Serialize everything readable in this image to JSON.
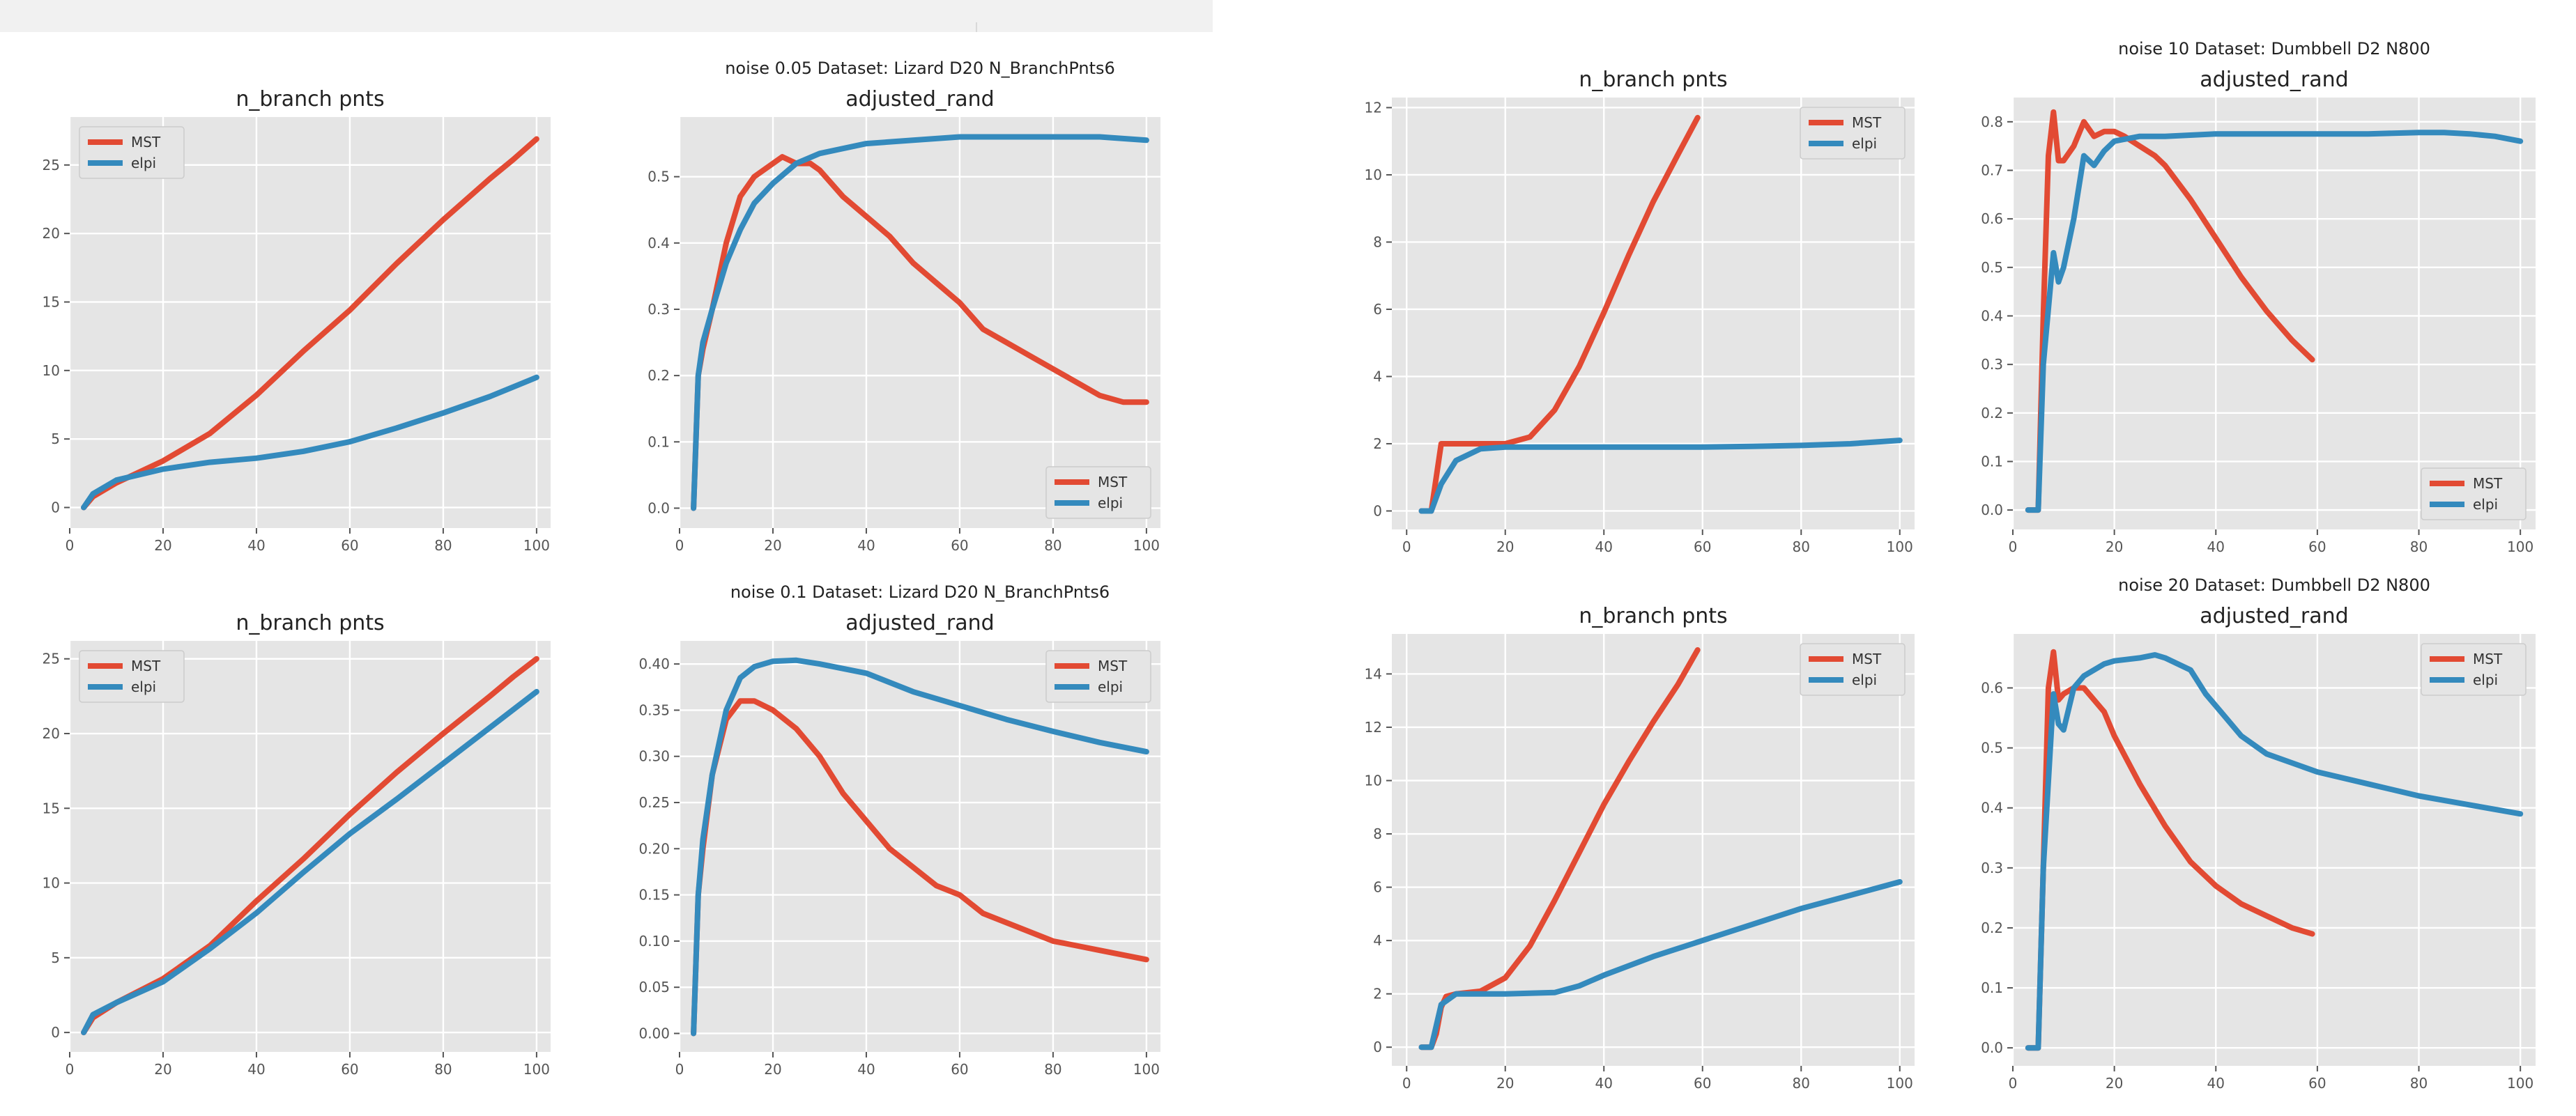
{
  "colors": {
    "MST": "#e24a33",
    "elpi": "#348abd",
    "panel": "#e5e5e5",
    "grid": "#ffffff"
  },
  "chart_data": [
    {
      "type": "line",
      "title": "n_branch pnts",
      "suptitle_line1": "",
      "legend": [
        "MST",
        "elpi"
      ],
      "legend_position": "upper-left",
      "xlim": [
        0,
        103
      ],
      "ylim": [
        -1.5,
        28.5
      ],
      "xticks": [
        0,
        20,
        40,
        60,
        80,
        100
      ],
      "yticks": [
        0,
        5,
        10,
        15,
        20,
        25
      ],
      "series": [
        {
          "name": "MST",
          "x": [
            3,
            5,
            10,
            20,
            30,
            40,
            50,
            60,
            70,
            80,
            90,
            95,
            100
          ],
          "values": [
            0,
            0.8,
            1.8,
            3.4,
            5.4,
            8.2,
            11.4,
            14.4,
            17.8,
            21.0,
            24.0,
            25.4,
            26.9
          ]
        },
        {
          "name": "elpi",
          "x": [
            3,
            5,
            10,
            20,
            30,
            40,
            50,
            60,
            70,
            80,
            90,
            100
          ],
          "values": [
            0,
            1.0,
            2.0,
            2.8,
            3.3,
            3.6,
            4.1,
            4.8,
            5.8,
            6.9,
            8.1,
            9.5
          ]
        }
      ]
    },
    {
      "type": "line",
      "title": "adjusted_rand",
      "suptitle_line1": "noise 0.05   Dataset: Lizard D20 N_BranchPnts6",
      "legend": [
        "MST",
        "elpi"
      ],
      "legend_position": "lower-right",
      "xlim": [
        0,
        103
      ],
      "ylim": [
        -0.03,
        0.59
      ],
      "xticks": [
        0,
        20,
        40,
        60,
        80,
        100
      ],
      "yticks": [
        0.0,
        0.1,
        0.2,
        0.3,
        0.4,
        0.5
      ],
      "series": [
        {
          "name": "MST",
          "x": [
            3,
            4,
            5,
            7,
            10,
            13,
            16,
            20,
            22,
            25,
            28,
            30,
            35,
            40,
            45,
            50,
            55,
            60,
            65,
            70,
            75,
            80,
            85,
            90,
            95,
            100
          ],
          "values": [
            0,
            0.2,
            0.24,
            0.3,
            0.4,
            0.47,
            0.5,
            0.52,
            0.53,
            0.52,
            0.52,
            0.51,
            0.47,
            0.44,
            0.41,
            0.37,
            0.34,
            0.31,
            0.27,
            0.25,
            0.23,
            0.21,
            0.19,
            0.17,
            0.16,
            0.16
          ]
        },
        {
          "name": "elpi",
          "x": [
            3,
            4,
            5,
            7,
            10,
            13,
            16,
            20,
            25,
            30,
            40,
            50,
            60,
            70,
            80,
            90,
            100
          ],
          "values": [
            0,
            0.2,
            0.25,
            0.3,
            0.37,
            0.42,
            0.46,
            0.49,
            0.52,
            0.535,
            0.55,
            0.555,
            0.56,
            0.56,
            0.56,
            0.56,
            0.555
          ]
        }
      ]
    },
    {
      "type": "line",
      "title": "n_branch pnts",
      "suptitle_line1": "",
      "legend": [
        "MST",
        "elpi"
      ],
      "legend_position": "upper-left",
      "xlim": [
        0,
        103
      ],
      "ylim": [
        -1.3,
        26.2
      ],
      "xticks": [
        0,
        20,
        40,
        60,
        80,
        100
      ],
      "yticks": [
        0,
        5,
        10,
        15,
        20,
        25
      ],
      "series": [
        {
          "name": "MST",
          "x": [
            3,
            5,
            10,
            20,
            30,
            40,
            50,
            60,
            70,
            80,
            90,
            95,
            100
          ],
          "values": [
            0,
            1.0,
            2.0,
            3.6,
            5.8,
            8.8,
            11.6,
            14.6,
            17.4,
            20.0,
            22.5,
            23.8,
            25.0
          ]
        },
        {
          "name": "elpi",
          "x": [
            3,
            5,
            10,
            20,
            30,
            40,
            50,
            60,
            70,
            80,
            90,
            100
          ],
          "values": [
            0,
            1.2,
            2.0,
            3.4,
            5.6,
            8.0,
            10.7,
            13.3,
            15.6,
            18.0,
            20.4,
            22.8
          ]
        }
      ]
    },
    {
      "type": "line",
      "title": "adjusted_rand",
      "suptitle_line1": "noise 0.1   Dataset: Lizard D20 N_BranchPnts6",
      "legend": [
        "MST",
        "elpi"
      ],
      "legend_position": "upper-right",
      "xlim": [
        0,
        103
      ],
      "ylim": [
        -0.02,
        0.425
      ],
      "xticks": [
        0,
        20,
        40,
        60,
        80,
        100
      ],
      "yticks": [
        0.0,
        0.05,
        0.1,
        0.15,
        0.2,
        0.25,
        0.3,
        0.35,
        0.4
      ],
      "ytick_labels": [
        "0.00",
        "0.05",
        "0.10",
        "0.15",
        "0.20",
        "0.25",
        "0.30",
        "0.35",
        "0.40"
      ],
      "series": [
        {
          "name": "MST",
          "x": [
            3,
            4,
            5,
            7,
            10,
            13,
            16,
            20,
            25,
            30,
            35,
            40,
            45,
            50,
            55,
            60,
            65,
            70,
            75,
            80,
            85,
            90,
            95,
            100
          ],
          "values": [
            0,
            0.15,
            0.2,
            0.28,
            0.34,
            0.36,
            0.36,
            0.35,
            0.33,
            0.3,
            0.26,
            0.23,
            0.2,
            0.18,
            0.16,
            0.15,
            0.13,
            0.12,
            0.11,
            0.1,
            0.095,
            0.09,
            0.085,
            0.08
          ]
        },
        {
          "name": "elpi",
          "x": [
            3,
            4,
            5,
            7,
            10,
            13,
            16,
            20,
            25,
            30,
            40,
            50,
            60,
            70,
            80,
            90,
            100
          ],
          "values": [
            0,
            0.15,
            0.21,
            0.28,
            0.35,
            0.385,
            0.397,
            0.403,
            0.404,
            0.4,
            0.39,
            0.37,
            0.355,
            0.34,
            0.327,
            0.315,
            0.305
          ]
        }
      ]
    },
    {
      "type": "line",
      "title": "n_branch pnts",
      "suptitle_line1": "",
      "legend": [
        "MST",
        "elpi"
      ],
      "legend_position": "upper-right",
      "xlim": [
        -3,
        103
      ],
      "ylim": [
        -0.55,
        12.3
      ],
      "xticks": [
        0,
        20,
        40,
        60,
        80,
        100
      ],
      "yticks": [
        0,
        2,
        4,
        6,
        8,
        10,
        12
      ],
      "series": [
        {
          "name": "MST",
          "x": [
            3,
            5,
            6,
            7,
            10,
            15,
            20,
            25,
            30,
            35,
            40,
            45,
            50,
            55,
            59
          ],
          "values": [
            0,
            0,
            1.0,
            2.0,
            2.0,
            2.0,
            2.0,
            2.2,
            3.0,
            4.3,
            5.9,
            7.6,
            9.2,
            10.6,
            11.7
          ]
        },
        {
          "name": "elpi",
          "x": [
            3,
            5,
            7,
            10,
            15,
            20,
            30,
            40,
            50,
            60,
            70,
            80,
            90,
            100
          ],
          "values": [
            0,
            0,
            0.8,
            1.5,
            1.85,
            1.9,
            1.9,
            1.9,
            1.9,
            1.9,
            1.92,
            1.95,
            2.0,
            2.1
          ]
        }
      ]
    },
    {
      "type": "line",
      "title": "adjusted_rand",
      "suptitle_line1": "noise 10   Dataset: Dumbbell D2 N800",
      "legend": [
        "MST",
        "elpi"
      ],
      "legend_position": "lower-right",
      "xlim": [
        0,
        103
      ],
      "ylim": [
        -0.04,
        0.85
      ],
      "xticks": [
        0,
        20,
        40,
        60,
        80,
        100
      ],
      "yticks": [
        0.0,
        0.1,
        0.2,
        0.3,
        0.4,
        0.5,
        0.6,
        0.7,
        0.8
      ],
      "series": [
        {
          "name": "MST",
          "x": [
            3,
            5,
            6,
            7,
            8,
            9,
            10,
            12,
            14,
            16,
            18,
            20,
            22,
            25,
            28,
            30,
            35,
            40,
            45,
            50,
            55,
            59
          ],
          "values": [
            0,
            0,
            0.4,
            0.73,
            0.82,
            0.72,
            0.72,
            0.75,
            0.8,
            0.77,
            0.78,
            0.78,
            0.77,
            0.75,
            0.73,
            0.71,
            0.64,
            0.56,
            0.48,
            0.41,
            0.35,
            0.31
          ]
        },
        {
          "name": "elpi",
          "x": [
            3,
            5,
            6,
            8,
            9,
            10,
            12,
            14,
            16,
            18,
            20,
            25,
            30,
            40,
            50,
            60,
            70,
            80,
            85,
            90,
            95,
            100
          ],
          "values": [
            0,
            0,
            0.3,
            0.53,
            0.47,
            0.5,
            0.6,
            0.73,
            0.71,
            0.74,
            0.76,
            0.77,
            0.77,
            0.775,
            0.775,
            0.775,
            0.775,
            0.778,
            0.778,
            0.775,
            0.77,
            0.76
          ]
        }
      ]
    },
    {
      "type": "line",
      "title": "n_branch pnts",
      "suptitle_line1": "",
      "legend": [
        "MST",
        "elpi"
      ],
      "legend_position": "upper-right",
      "xlim": [
        -3,
        103
      ],
      "ylim": [
        -0.7,
        15.5
      ],
      "xticks": [
        0,
        20,
        40,
        60,
        80,
        100
      ],
      "yticks": [
        0,
        2,
        4,
        6,
        8,
        10,
        12,
        14
      ],
      "series": [
        {
          "name": "MST",
          "x": [
            3,
            5,
            6,
            7,
            8,
            10,
            15,
            20,
            25,
            30,
            35,
            40,
            45,
            50,
            55,
            59
          ],
          "values": [
            0,
            0,
            0.5,
            1.5,
            1.9,
            2.0,
            2.1,
            2.6,
            3.8,
            5.5,
            7.3,
            9.1,
            10.7,
            12.2,
            13.6,
            14.9
          ]
        },
        {
          "name": "elpi",
          "x": [
            3,
            5,
            7,
            10,
            20,
            30,
            35,
            40,
            50,
            60,
            70,
            80,
            90,
            100
          ],
          "values": [
            0,
            0,
            1.6,
            2.0,
            2.0,
            2.05,
            2.3,
            2.7,
            3.4,
            4.0,
            4.6,
            5.2,
            5.7,
            6.2
          ]
        }
      ]
    },
    {
      "type": "line",
      "title": "adjusted_rand",
      "suptitle_line1": "noise 20   Dataset: Dumbbell D2 N800",
      "legend": [
        "MST",
        "elpi"
      ],
      "legend_position": "upper-right",
      "xlim": [
        0,
        103
      ],
      "ylim": [
        -0.03,
        0.69
      ],
      "xticks": [
        0,
        20,
        40,
        60,
        80,
        100
      ],
      "yticks": [
        0.0,
        0.1,
        0.2,
        0.3,
        0.4,
        0.5,
        0.6
      ],
      "series": [
        {
          "name": "MST",
          "x": [
            3,
            5,
            6,
            7,
            8,
            9,
            10,
            12,
            14,
            16,
            18,
            20,
            25,
            30,
            35,
            40,
            45,
            50,
            55,
            59
          ],
          "values": [
            0,
            0,
            0.3,
            0.6,
            0.66,
            0.58,
            0.59,
            0.6,
            0.6,
            0.58,
            0.56,
            0.52,
            0.44,
            0.37,
            0.31,
            0.27,
            0.24,
            0.22,
            0.2,
            0.19
          ]
        },
        {
          "name": "elpi",
          "x": [
            3,
            5,
            6,
            8,
            9,
            10,
            12,
            14,
            16,
            18,
            20,
            25,
            28,
            30,
            35,
            38,
            40,
            45,
            50,
            60,
            70,
            80,
            90,
            100
          ],
          "values": [
            0,
            0,
            0.3,
            0.59,
            0.54,
            0.53,
            0.6,
            0.62,
            0.63,
            0.64,
            0.645,
            0.65,
            0.655,
            0.65,
            0.63,
            0.59,
            0.57,
            0.52,
            0.49,
            0.46,
            0.44,
            0.42,
            0.405,
            0.39
          ]
        }
      ]
    }
  ]
}
